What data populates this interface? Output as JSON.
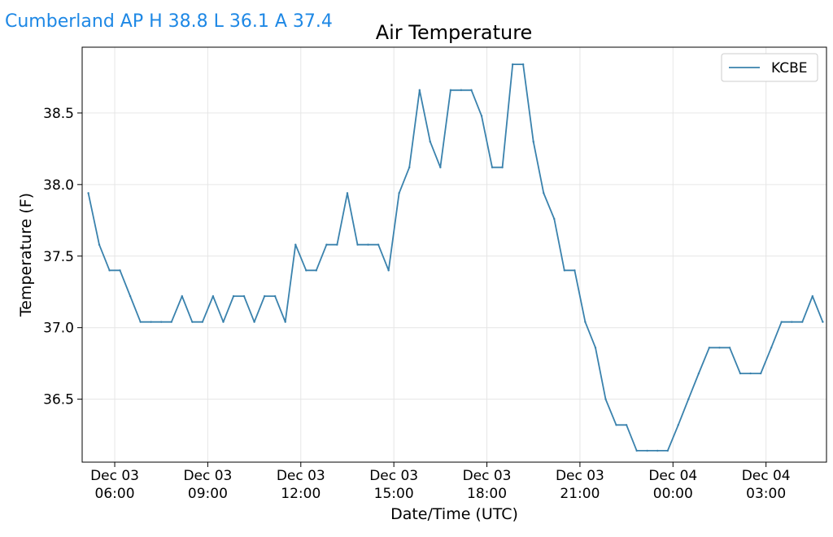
{
  "header": {
    "title": "Cumberland AP H 38.8 L 36.1 A 37.4"
  },
  "colors": {
    "header": "#1e88e5",
    "series": "#3a82ad",
    "grid": "#e6e6e6",
    "legend_border": "#cccccc"
  },
  "chart_data": {
    "type": "line",
    "title": "Air Temperature",
    "xlabel": "Date/Time (UTC)",
    "ylabel": "Temperature (F)",
    "ylim": [
      36.06,
      38.96
    ],
    "yticks": [
      36.5,
      37.0,
      37.5,
      38.0,
      38.5
    ],
    "ytick_labels": [
      "36.5",
      "37.0",
      "37.5",
      "38.0",
      "38.5"
    ],
    "xlim_hours": [
      4.95,
      28.95
    ],
    "xticks": [
      {
        "hours": 6,
        "line1": "Dec 03",
        "line2": "06:00"
      },
      {
        "hours": 9,
        "line1": "Dec 03",
        "line2": "09:00"
      },
      {
        "hours": 12,
        "line1": "Dec 03",
        "line2": "12:00"
      },
      {
        "hours": 15,
        "line1": "Dec 03",
        "line2": "15:00"
      },
      {
        "hours": 18,
        "line1": "Dec 03",
        "line2": "18:00"
      },
      {
        "hours": 21,
        "line1": "Dec 03",
        "line2": "21:00"
      },
      {
        "hours": 24,
        "line1": "Dec 04",
        "line2": "00:00"
      },
      {
        "hours": 27,
        "line1": "Dec 04",
        "line2": "03:00"
      }
    ],
    "grid": true,
    "legend_placement": "top-right",
    "series": [
      {
        "name": "KCBE",
        "x": [
          5.15,
          5.5,
          5.83,
          6.17,
          6.5,
          6.83,
          7.17,
          7.5,
          7.83,
          8.17,
          8.5,
          8.83,
          9.17,
          9.5,
          9.83,
          10.17,
          10.5,
          10.83,
          11.17,
          11.5,
          11.83,
          12.17,
          12.5,
          12.83,
          13.17,
          13.5,
          13.83,
          14.17,
          14.5,
          14.83,
          15.17,
          15.5,
          15.83,
          16.17,
          16.5,
          16.83,
          17.17,
          17.5,
          17.83,
          18.17,
          18.5,
          18.83,
          19.17,
          19.5,
          19.83,
          20.17,
          20.5,
          20.83,
          21.17,
          21.5,
          21.83,
          22.17,
          22.5,
          22.83,
          23.17,
          23.5,
          23.83,
          24.17,
          24.5,
          24.83,
          25.17,
          25.5,
          25.83,
          26.17,
          26.5,
          26.83,
          27.17,
          27.5,
          27.83,
          28.17,
          28.5,
          28.83
        ],
        "values": [
          37.94,
          37.58,
          37.4,
          37.4,
          37.22,
          37.04,
          37.04,
          37.04,
          37.04,
          37.22,
          37.04,
          37.04,
          37.22,
          37.04,
          37.22,
          37.22,
          37.04,
          37.22,
          37.22,
          37.04,
          37.58,
          37.4,
          37.4,
          37.58,
          37.58,
          37.94,
          37.58,
          37.58,
          37.58,
          37.4,
          37.94,
          38.12,
          38.66,
          38.3,
          38.12,
          38.66,
          38.66,
          38.66,
          38.48,
          38.12,
          38.12,
          38.84,
          38.84,
          38.3,
          37.94,
          37.76,
          37.4,
          37.4,
          37.04,
          36.86,
          36.5,
          36.32,
          36.32,
          36.14,
          36.14,
          36.14,
          36.14,
          36.32,
          36.5,
          36.68,
          36.86,
          36.86,
          36.86,
          36.68,
          36.68,
          36.68,
          36.86,
          37.04,
          37.04,
          37.04,
          37.22,
          37.04
        ]
      }
    ]
  }
}
